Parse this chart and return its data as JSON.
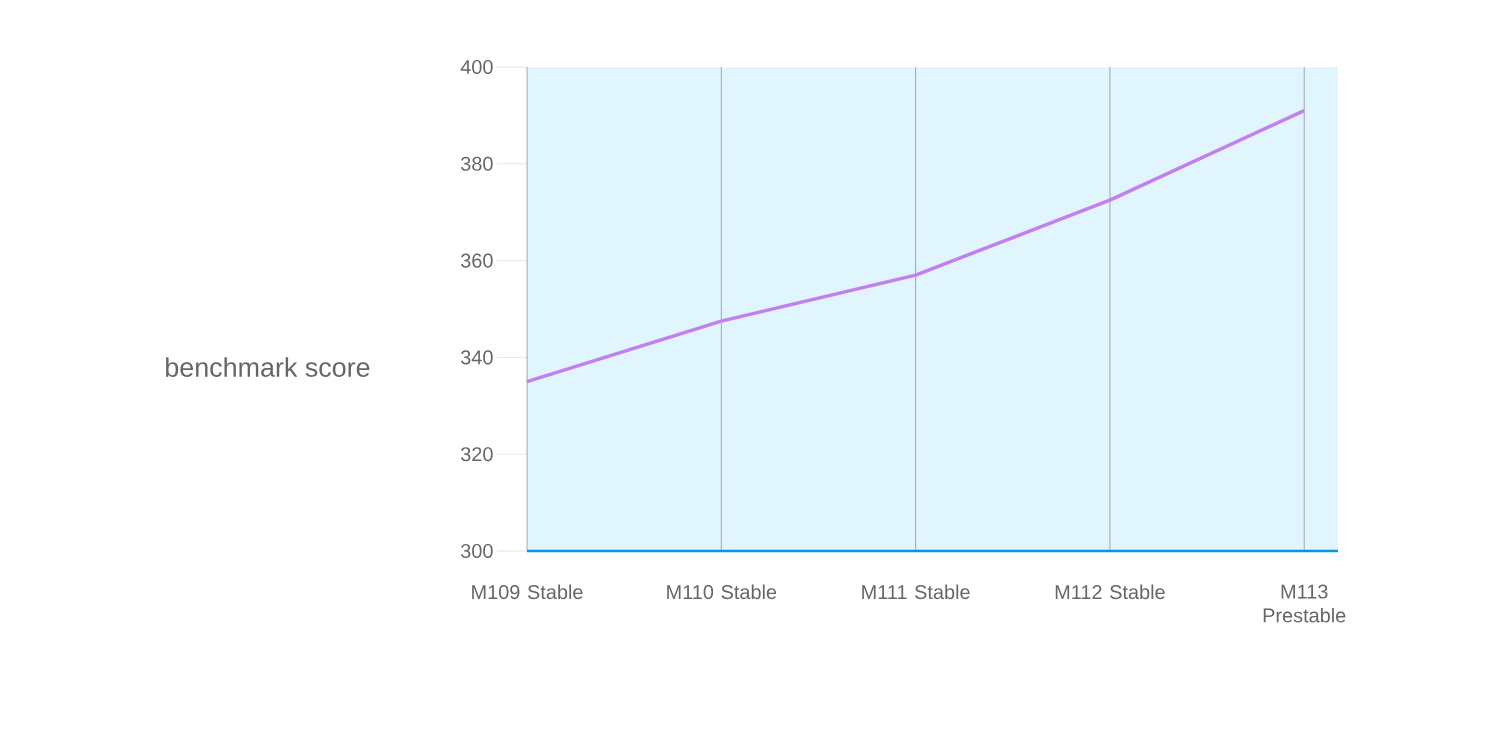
{
  "chart_data": {
    "type": "line",
    "ylabel": "benchmark score",
    "categories": [
      "M109 Stable",
      "M110 Stable",
      "M111 Stable",
      "M112 Stable",
      "M113 Prestable"
    ],
    "series": [
      {
        "color": "#c27ff0",
        "values": [
          335,
          347.5,
          357,
          372.5,
          391
        ]
      }
    ],
    "ylim": [
      300,
      400
    ],
    "yticks": [
      300,
      320,
      340,
      360,
      380,
      400
    ],
    "grid": "x",
    "marker": "none",
    "line_style": "solid"
  }
}
